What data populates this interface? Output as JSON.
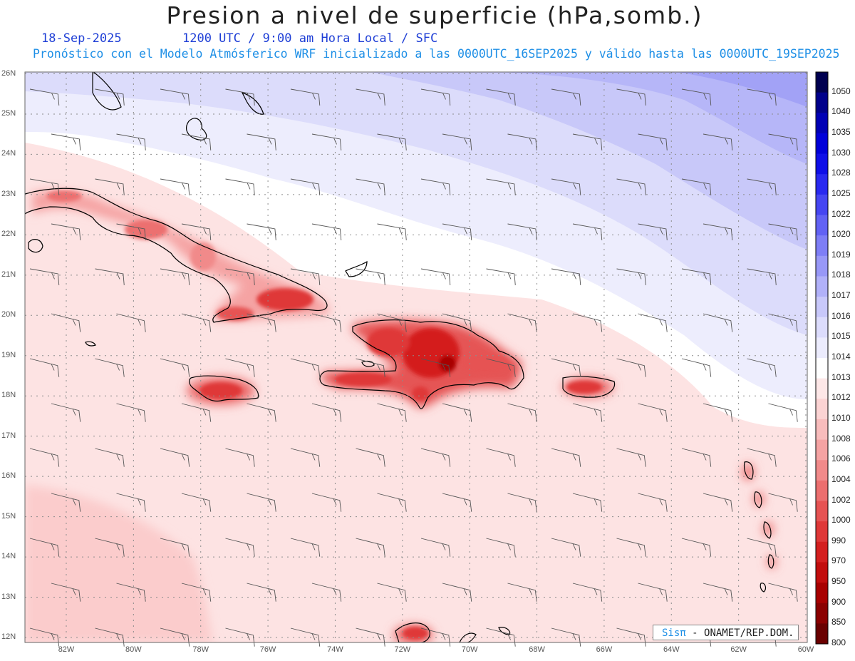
{
  "title": "Presion a nivel de superficie (hPa,somb.)",
  "date": "18-Sep-2025",
  "valid_time": "1200 UTC / 9:00 am Hora Local / SFC",
  "run_info": "Pronóstico con el Modelo Atmósferico WRF inicializado a las 0000UTC_16SEP2025 y válido hasta las  0000UTC_19SEP2025",
  "lat_labels": [
    "26N",
    "25N",
    "24N",
    "23N",
    "22N",
    "21N",
    "20N",
    "19N",
    "18N",
    "17N",
    "16N",
    "15N",
    "14N",
    "13N",
    "12N"
  ],
  "lon_labels": [
    "82W",
    "80W",
    "78W",
    "76W",
    "74W",
    "72W",
    "70W",
    "68W",
    "66W",
    "64W",
    "62W",
    "60W"
  ],
  "colorbar": {
    "levels": [
      "1050",
      "1040",
      "1035",
      "1030",
      "1028",
      "1025",
      "1022",
      "1020",
      "1019",
      "1018",
      "1017",
      "1016",
      "1015",
      "1014",
      "1013",
      "1012",
      "1010",
      "1008",
      "1006",
      "1004",
      "1002",
      "1000",
      "990",
      "970",
      "950",
      "900",
      "850",
      "800"
    ],
    "colors": [
      "#000050",
      "#00008b",
      "#0000b5",
      "#0000d9",
      "#0f0fe8",
      "#2929f0",
      "#4646f2",
      "#6262f4",
      "#7e7ef6",
      "#9898f7",
      "#b1b1f9",
      "#c8c8fa",
      "#dcdcfc",
      "#ececfd",
      "#ffffff",
      "#fde7e7",
      "#fbd3d3",
      "#f8bcbc",
      "#f5a3a3",
      "#f18a8a",
      "#ec6f6f",
      "#e65353",
      "#df3838",
      "#d41f1f",
      "#c20d0d",
      "#a80000",
      "#8b0000",
      "#6a0000"
    ]
  },
  "credit": {
    "logo": "Sisπ",
    "text": "- ONAMET/REP.DOM."
  }
}
